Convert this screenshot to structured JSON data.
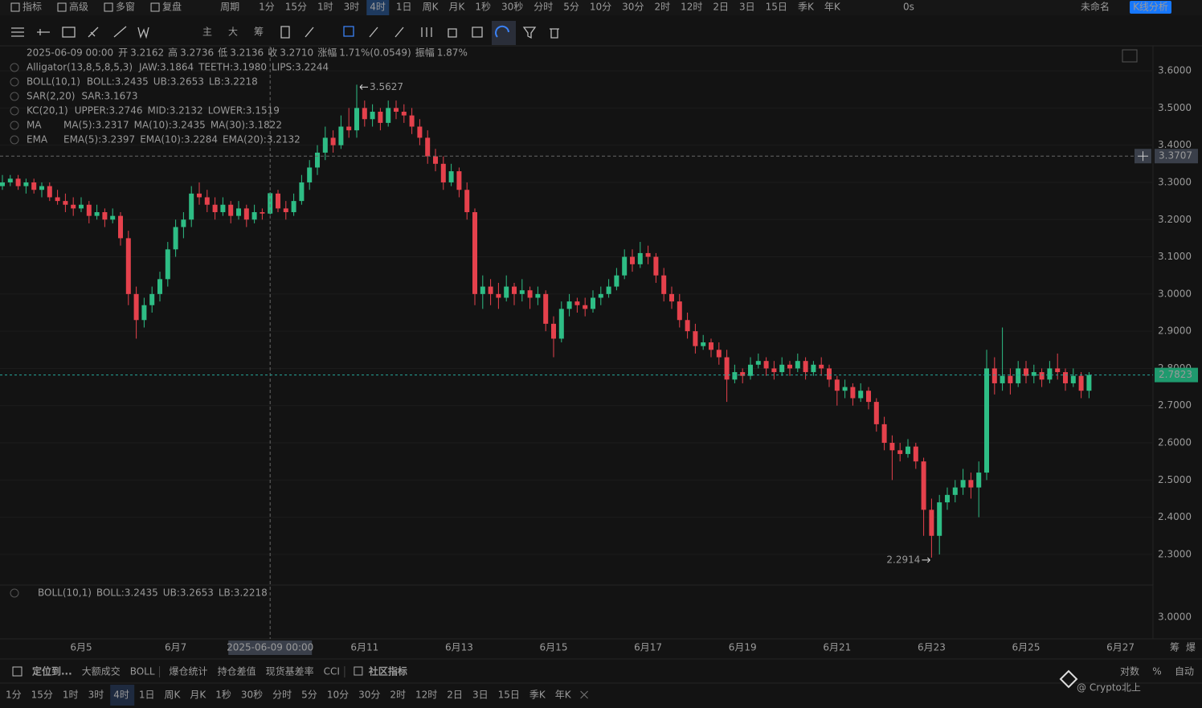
{
  "toolbar": {
    "tools": [
      "指标",
      "高级",
      "多窗",
      "复盘"
    ],
    "period_label": "周期",
    "periods": [
      "1分",
      "15分",
      "1时",
      "3时",
      "4时",
      "1日",
      "周K",
      "月K",
      "1秒",
      "30秒",
      "分时",
      "5分",
      "10分",
      "30分",
      "2时",
      "12时",
      "2日",
      "3日",
      "15日",
      "季K",
      "年K"
    ],
    "active_period": "4时",
    "right": {
      "timer": "0s",
      "layout": "未命名",
      "button": "K线分析"
    },
    "chart_tools": [
      "主",
      "大",
      "筹"
    ]
  },
  "legend": {
    "date": "2025-06-09 00:00",
    "fields": [
      {
        "k": "开",
        "v": "3.2162"
      },
      {
        "k": "高",
        "v": "3.2736"
      },
      {
        "k": "低",
        "v": "3.2136"
      },
      {
        "k": "收",
        "v": "3.2710"
      },
      {
        "k": "涨幅",
        "v": "1.71%(0.0549)"
      },
      {
        "k": "振幅",
        "v": "1.87%"
      }
    ],
    "rows": [
      {
        "label": "Alligator(13,8,5,8,5,3)",
        "items": [
          "JAW:3.1864",
          "TEETH:3.1980",
          "LIPS:3.2244"
        ]
      },
      {
        "label": "BOLL(10,1)",
        "items": [
          "BOLL:3.2435",
          "UB:3.2653",
          "LB:3.2218"
        ]
      },
      {
        "label": "SAR(2,20)",
        "items": [
          "SAR:3.1673"
        ]
      },
      {
        "label": "KC(20,1)",
        "items": [
          "UPPER:3.2746",
          "MID:3.2132",
          "LOWER:3.1519"
        ]
      },
      {
        "label": "MA",
        "items": [
          "MA(5):3.2317",
          "MA(10):3.2435",
          "MA(30):3.1822"
        ]
      },
      {
        "label": "EMA",
        "items": [
          "EMA(5):3.2397",
          "EMA(10):3.2284",
          "EMA(20):3.2132"
        ]
      }
    ]
  },
  "chart_data": {
    "type": "candlestick",
    "up_color": "#2ebd85",
    "down_color": "#e5414c",
    "ylim": [
      2.235,
      3.665
    ],
    "yticks": [
      {
        "value": 2.3,
        "label": "2.3000"
      },
      {
        "value": 2.4,
        "label": "2.4000"
      },
      {
        "value": 2.5,
        "label": "2.5000"
      },
      {
        "value": 2.6,
        "label": "2.6000"
      },
      {
        "value": 2.7,
        "label": "2.7000"
      },
      {
        "value": 2.8,
        "label": "2.8000"
      },
      {
        "value": 2.9,
        "label": "2.9000"
      },
      {
        "value": 3.0,
        "label": "3.0000"
      },
      {
        "value": 3.1,
        "label": "3.1000"
      },
      {
        "value": 3.2,
        "label": "3.2000"
      },
      {
        "value": 3.3,
        "label": "3.3000"
      },
      {
        "value": 3.4,
        "label": "3.4000"
      },
      {
        "value": 3.5,
        "label": "3.5000"
      },
      {
        "value": 3.6,
        "label": "3.6000"
      }
    ],
    "xtick_labels": [
      "6月5",
      "6月7",
      "6月9",
      "6月11",
      "6月13",
      "6月15",
      "6月17",
      "6月19",
      "6月21",
      "6月23",
      "6月25",
      "6月27"
    ],
    "crosshair": {
      "time": "2025-06-09 00:00",
      "price": 3.3707
    },
    "candles": [
      [
        3.29,
        3.32,
        3.28,
        3.3
      ],
      [
        3.3,
        3.32,
        3.29,
        3.31
      ],
      [
        3.31,
        3.32,
        3.28,
        3.29
      ],
      [
        3.29,
        3.31,
        3.27,
        3.3
      ],
      [
        3.3,
        3.31,
        3.27,
        3.28
      ],
      [
        3.28,
        3.3,
        3.26,
        3.29
      ],
      [
        3.29,
        3.3,
        3.25,
        3.26
      ],
      [
        3.26,
        3.28,
        3.24,
        3.25
      ],
      [
        3.25,
        3.27,
        3.22,
        3.24
      ],
      [
        3.24,
        3.26,
        3.21,
        3.23
      ],
      [
        3.23,
        3.26,
        3.22,
        3.24
      ],
      [
        3.24,
        3.25,
        3.19,
        3.21
      ],
      [
        3.21,
        3.24,
        3.2,
        3.22
      ],
      [
        3.22,
        3.23,
        3.18,
        3.2
      ],
      [
        3.2,
        3.23,
        3.19,
        3.21
      ],
      [
        3.21,
        3.22,
        3.13,
        3.15
      ],
      [
        3.15,
        3.17,
        2.97,
        3.0
      ],
      [
        3.0,
        3.02,
        2.88,
        2.93
      ],
      [
        2.93,
        2.99,
        2.91,
        2.97
      ],
      [
        2.97,
        3.02,
        2.95,
        3.0
      ],
      [
        3.0,
        3.06,
        2.98,
        3.04
      ],
      [
        3.04,
        3.14,
        3.02,
        3.12
      ],
      [
        3.12,
        3.2,
        3.1,
        3.18
      ],
      [
        3.18,
        3.22,
        3.15,
        3.2
      ],
      [
        3.2,
        3.29,
        3.18,
        3.27
      ],
      [
        3.27,
        3.3,
        3.24,
        3.26
      ],
      [
        3.26,
        3.28,
        3.22,
        3.24
      ],
      [
        3.24,
        3.26,
        3.2,
        3.22
      ],
      [
        3.22,
        3.26,
        3.21,
        3.24
      ],
      [
        3.24,
        3.25,
        3.19,
        3.21
      ],
      [
        3.21,
        3.25,
        3.2,
        3.23
      ],
      [
        3.23,
        3.24,
        3.18,
        3.2
      ],
      [
        3.2,
        3.24,
        3.19,
        3.22
      ],
      [
        3.22,
        3.23,
        3.2,
        3.2162
      ],
      [
        3.2162,
        3.2736,
        3.2136,
        3.271
      ],
      [
        3.27,
        3.28,
        3.22,
        3.23
      ],
      [
        3.23,
        3.25,
        3.2,
        3.22
      ],
      [
        3.22,
        3.27,
        3.21,
        3.25
      ],
      [
        3.25,
        3.32,
        3.24,
        3.3
      ],
      [
        3.3,
        3.36,
        3.28,
        3.34
      ],
      [
        3.34,
        3.4,
        3.32,
        3.38
      ],
      [
        3.38,
        3.45,
        3.36,
        3.42
      ],
      [
        3.42,
        3.44,
        3.38,
        3.4
      ],
      [
        3.4,
        3.48,
        3.39,
        3.45
      ],
      [
        3.45,
        3.5,
        3.42,
        3.44
      ],
      [
        3.44,
        3.5627,
        3.42,
        3.5
      ],
      [
        3.5,
        3.52,
        3.45,
        3.47
      ],
      [
        3.47,
        3.51,
        3.45,
        3.49
      ],
      [
        3.49,
        3.5,
        3.44,
        3.46
      ],
      [
        3.46,
        3.52,
        3.45,
        3.5
      ],
      [
        3.5,
        3.52,
        3.47,
        3.49
      ],
      [
        3.49,
        3.51,
        3.46,
        3.48
      ],
      [
        3.48,
        3.5,
        3.43,
        3.45
      ],
      [
        3.45,
        3.47,
        3.4,
        3.42
      ],
      [
        3.42,
        3.44,
        3.35,
        3.37
      ],
      [
        3.37,
        3.39,
        3.33,
        3.35
      ],
      [
        3.35,
        3.37,
        3.28,
        3.3
      ],
      [
        3.3,
        3.35,
        3.29,
        3.33
      ],
      [
        3.33,
        3.34,
        3.26,
        3.28
      ],
      [
        3.28,
        3.3,
        3.2,
        3.22
      ],
      [
        3.22,
        3.23,
        2.97,
        3.0
      ],
      [
        3.0,
        3.05,
        2.96,
        3.02
      ],
      [
        3.02,
        3.04,
        2.97,
        3.0
      ],
      [
        3.0,
        3.03,
        2.96,
        2.99
      ],
      [
        2.99,
        3.05,
        2.98,
        3.02
      ],
      [
        3.02,
        3.03,
        2.97,
        3.0
      ],
      [
        3.0,
        3.04,
        2.98,
        3.01
      ],
      [
        3.01,
        3.02,
        2.96,
        2.99
      ],
      [
        2.99,
        3.02,
        2.97,
        3.0
      ],
      [
        3.0,
        3.01,
        2.9,
        2.92
      ],
      [
        2.92,
        2.94,
        2.83,
        2.88
      ],
      [
        2.88,
        2.98,
        2.87,
        2.96
      ],
      [
        2.96,
        3.0,
        2.94,
        2.98
      ],
      [
        2.98,
        2.99,
        2.95,
        2.97
      ],
      [
        2.97,
        2.99,
        2.94,
        2.96
      ],
      [
        2.96,
        3.01,
        2.95,
        2.99
      ],
      [
        2.99,
        3.02,
        2.97,
        3.0
      ],
      [
        3.0,
        3.04,
        2.99,
        3.02
      ],
      [
        3.02,
        3.07,
        3.01,
        3.05
      ],
      [
        3.05,
        3.12,
        3.04,
        3.1
      ],
      [
        3.1,
        3.12,
        3.06,
        3.08
      ],
      [
        3.08,
        3.14,
        3.07,
        3.11
      ],
      [
        3.11,
        3.13,
        3.08,
        3.1
      ],
      [
        3.1,
        3.11,
        3.03,
        3.05
      ],
      [
        3.05,
        3.07,
        2.98,
        3.0
      ],
      [
        3.0,
        3.02,
        2.96,
        2.98
      ],
      [
        2.98,
        3.0,
        2.91,
        2.93
      ],
      [
        2.93,
        2.95,
        2.88,
        2.9
      ],
      [
        2.9,
        2.92,
        2.84,
        2.86
      ],
      [
        2.86,
        2.89,
        2.85,
        2.87
      ],
      [
        2.87,
        2.88,
        2.83,
        2.85
      ],
      [
        2.85,
        2.87,
        2.81,
        2.83
      ],
      [
        2.83,
        2.85,
        2.71,
        2.77
      ],
      [
        2.77,
        2.81,
        2.76,
        2.79
      ],
      [
        2.79,
        2.8,
        2.76,
        2.78
      ],
      [
        2.78,
        2.83,
        2.77,
        2.81
      ],
      [
        2.81,
        2.84,
        2.8,
        2.82
      ],
      [
        2.82,
        2.83,
        2.78,
        2.8
      ],
      [
        2.8,
        2.82,
        2.77,
        2.79
      ],
      [
        2.79,
        2.83,
        2.78,
        2.81
      ],
      [
        2.81,
        2.82,
        2.78,
        2.8
      ],
      [
        2.8,
        2.84,
        2.79,
        2.82
      ],
      [
        2.82,
        2.83,
        2.77,
        2.79
      ],
      [
        2.79,
        2.82,
        2.78,
        2.81
      ],
      [
        2.81,
        2.83,
        2.78,
        2.8
      ],
      [
        2.8,
        2.81,
        2.75,
        2.77
      ],
      [
        2.77,
        2.78,
        2.7,
        2.74
      ],
      [
        2.74,
        2.77,
        2.72,
        2.75
      ],
      [
        2.75,
        2.76,
        2.7,
        2.72
      ],
      [
        2.72,
        2.76,
        2.71,
        2.74
      ],
      [
        2.74,
        2.75,
        2.69,
        2.71
      ],
      [
        2.71,
        2.72,
        2.63,
        2.65
      ],
      [
        2.65,
        2.67,
        2.58,
        2.6
      ],
      [
        2.6,
        2.62,
        2.5,
        2.58
      ],
      [
        2.58,
        2.6,
        2.55,
        2.57
      ],
      [
        2.57,
        2.61,
        2.56,
        2.59
      ],
      [
        2.59,
        2.6,
        2.53,
        2.55
      ],
      [
        2.55,
        2.56,
        2.35,
        2.42
      ],
      [
        2.42,
        2.45,
        2.2914,
        2.35
      ],
      [
        2.35,
        2.46,
        2.3,
        2.44
      ],
      [
        2.44,
        2.48,
        2.42,
        2.46
      ],
      [
        2.46,
        2.5,
        2.44,
        2.48
      ],
      [
        2.48,
        2.53,
        2.46,
        2.5
      ],
      [
        2.5,
        2.52,
        2.45,
        2.48
      ],
      [
        2.48,
        2.55,
        2.4,
        2.52
      ],
      [
        2.52,
        2.85,
        2.5,
        2.8
      ],
      [
        2.8,
        2.83,
        2.73,
        2.76
      ],
      [
        2.76,
        2.91,
        2.74,
        2.78
      ],
      [
        2.78,
        2.8,
        2.73,
        2.76
      ],
      [
        2.76,
        2.82,
        2.75,
        2.8
      ],
      [
        2.8,
        2.82,
        2.76,
        2.78
      ],
      [
        2.78,
        2.81,
        2.76,
        2.79
      ],
      [
        2.79,
        2.8,
        2.75,
        2.77
      ],
      [
        2.77,
        2.82,
        2.76,
        2.8
      ],
      [
        2.8,
        2.84,
        2.77,
        2.79
      ],
      [
        2.79,
        2.8,
        2.74,
        2.76
      ],
      [
        2.76,
        2.8,
        2.75,
        2.78
      ],
      [
        2.78,
        2.79,
        2.72,
        2.74
      ],
      [
        2.74,
        2.79,
        2.72,
        2.7823
      ]
    ]
  },
  "sub_panel": {
    "legend": [
      "BOLL(10,1)",
      "BOLL:3.2435",
      "UB:3.2653",
      "LB:3.2218"
    ],
    "tick": "3.0000"
  },
  "axis_icons": [
    "筹",
    "爆"
  ],
  "bottom": {
    "items": [
      "定位到...",
      "大额成交",
      "BOLL",
      "爆仓统计",
      "持仓差值",
      "现货基差率",
      "CCI",
      "社区指标"
    ],
    "right": [
      "对数",
      "%",
      "自动"
    ],
    "watermark": "@ Crypto北上"
  }
}
